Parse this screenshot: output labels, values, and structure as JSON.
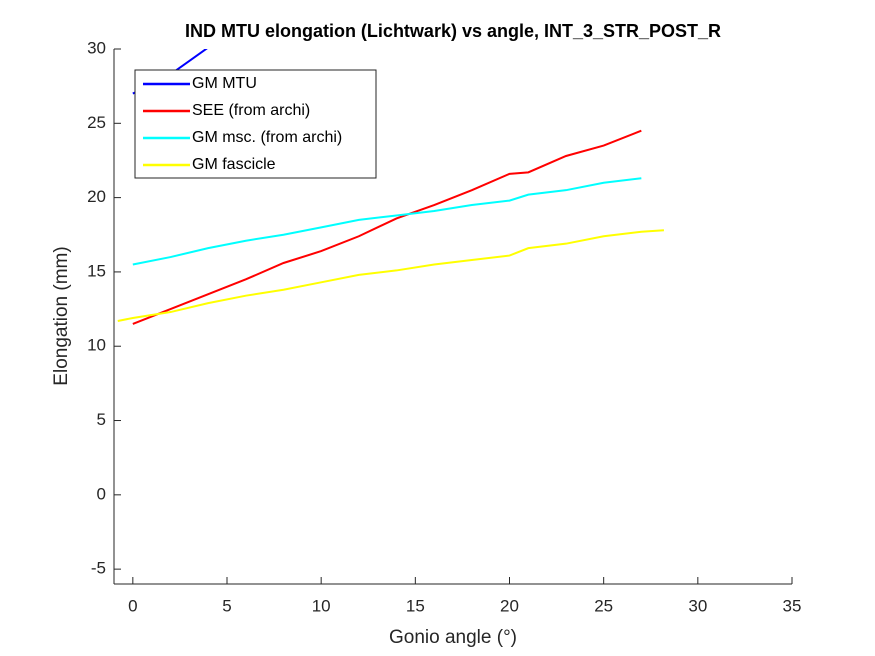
{
  "chart_data": {
    "type": "line",
    "title": "IND MTU elongation (Lichtwark) vs angle, INT_3_STR_POST_R",
    "x_label": "Gonio angle (°)",
    "y_label": "Elongation (mm)",
    "xlim": [
      -1,
      35
    ],
    "ylim": [
      -6,
      30
    ],
    "xticks": [
      0,
      5,
      10,
      15,
      20,
      25,
      30,
      35
    ],
    "yticks": [
      -5,
      0,
      5,
      10,
      15,
      20,
      25,
      30
    ],
    "legend": "upper-left",
    "series": [
      {
        "name": "GM MTU",
        "color": "#0000ff",
        "x": [
          0,
          1,
          2,
          3,
          4
        ],
        "values": [
          27.0,
          27.6,
          28.3,
          29.2,
          30.1
        ]
      },
      {
        "name": "SEE (from archi)",
        "color": "#ff0000",
        "x": [
          0,
          2,
          4,
          6,
          8,
          10,
          12,
          14,
          16,
          18,
          20,
          21,
          23,
          25,
          27
        ],
        "values": [
          11.5,
          12.5,
          13.5,
          14.5,
          15.6,
          16.4,
          17.4,
          18.6,
          19.5,
          20.5,
          21.6,
          21.7,
          22.8,
          23.5,
          24.5
        ]
      },
      {
        "name": "GM msc. (from archi)",
        "color": "#00ffff",
        "x": [
          0,
          2,
          4,
          6,
          8,
          10,
          12,
          14,
          16,
          18,
          20,
          21,
          23,
          25,
          27
        ],
        "values": [
          15.5,
          16.0,
          16.6,
          17.1,
          17.5,
          18.0,
          18.5,
          18.8,
          19.1,
          19.5,
          19.8,
          20.2,
          20.5,
          21.0,
          21.3
        ]
      },
      {
        "name": "GM fascicle",
        "color": "#ffff00",
        "x": [
          -0.8,
          0,
          2,
          4,
          6,
          8,
          10,
          12,
          14,
          16,
          18,
          20,
          21,
          23,
          25,
          27,
          28.2
        ],
        "values": [
          11.7,
          11.9,
          12.3,
          12.9,
          13.4,
          13.8,
          14.3,
          14.8,
          15.1,
          15.5,
          15.8,
          16.1,
          16.6,
          16.9,
          17.4,
          17.7,
          17.8
        ]
      }
    ]
  }
}
